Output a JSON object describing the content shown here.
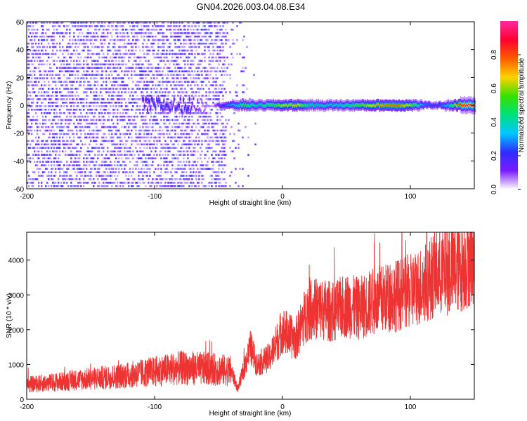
{
  "figure_title": "GN04.2026.003.04.08.E34",
  "colors": {
    "snr_trace": "#ee3333",
    "colormap": [
      "#ffffff",
      "#7a1cff",
      "#2d2dff",
      "#00c8ff",
      "#00e07a",
      "#39e000",
      "#ffd200",
      "#ff5a00",
      "#ff0030",
      "#ff2aa0"
    ]
  },
  "chart_data": [
    {
      "type": "heatmap",
      "xlabel": "Height of straight line (km)",
      "ylabel": "Frequency (Hz)",
      "xlim": [
        -200,
        150
      ],
      "ylim": [
        -60,
        60
      ],
      "x_ticks": [
        -200,
        -100,
        0,
        100
      ],
      "y_ticks": [
        -60,
        -40,
        -20,
        0,
        20,
        40,
        60
      ],
      "grid": false,
      "colorbar": {
        "label": "Normalized spectral amplitude",
        "range": [
          0,
          1
        ],
        "ticks": [
          "0.0",
          "0.2",
          "0.4",
          "0.6",
          "0.8"
        ],
        "tick_values": [
          0,
          0.2,
          0.4,
          0.6,
          0.8
        ],
        "position": "right"
      },
      "noise_region_x": [
        -200,
        -45
      ],
      "ridge": {
        "frequency_hz": 0,
        "profile": [
          [
            -110,
            0.18
          ],
          [
            -100,
            0.25
          ],
          [
            -90,
            0.22
          ],
          [
            -80,
            0.2
          ],
          [
            -75,
            0.25
          ],
          [
            -70,
            0.12
          ],
          [
            -55,
            0.05
          ],
          [
            -48,
            0.2
          ],
          [
            -42,
            0.3
          ],
          [
            -35,
            0.4
          ],
          [
            -30,
            0.55
          ],
          [
            -25,
            0.45
          ],
          [
            -20,
            0.4
          ],
          [
            -10,
            0.5
          ],
          [
            -5,
            0.55
          ],
          [
            0,
            0.65
          ],
          [
            5,
            0.6
          ],
          [
            10,
            0.7
          ],
          [
            20,
            0.45
          ],
          [
            30,
            0.4
          ],
          [
            40,
            0.4
          ],
          [
            50,
            0.45
          ],
          [
            60,
            0.55
          ],
          [
            70,
            0.68
          ],
          [
            80,
            0.75
          ],
          [
            90,
            0.78
          ],
          [
            100,
            0.6
          ],
          [
            110,
            0.3
          ],
          [
            120,
            0.2
          ],
          [
            130,
            0.4
          ],
          [
            140,
            0.92
          ],
          [
            150,
            0.95
          ]
        ]
      }
    },
    {
      "type": "line",
      "xlabel": "Height of straight line (km)",
      "ylabel": "SNR (10 * v/v)",
      "xlim": [
        -200,
        150
      ],
      "ylim": [
        0,
        4800
      ],
      "x_ticks": [
        -200,
        -100,
        0,
        100
      ],
      "y_ticks": [
        0,
        1000,
        2000,
        3000,
        4000
      ],
      "grid": false,
      "series": [
        {
          "x": [
            -200,
            -180,
            -160,
            -140,
            -120,
            -100,
            -80,
            -60,
            -40,
            -35,
            -30,
            -25,
            -20,
            -10,
            0,
            10,
            20,
            30,
            40,
            50,
            60,
            70,
            80,
            90,
            100,
            110,
            120,
            130,
            140,
            150
          ],
          "y": [
            420,
            480,
            560,
            620,
            700,
            800,
            900,
            880,
            820,
            300,
            900,
            1500,
            1000,
            1200,
            2000,
            1700,
            2600,
            2600,
            2500,
            2700,
            2600,
            2800,
            2900,
            3000,
            3100,
            3300,
            3600,
            3700,
            3800,
            4200
          ]
        }
      ]
    }
  ]
}
